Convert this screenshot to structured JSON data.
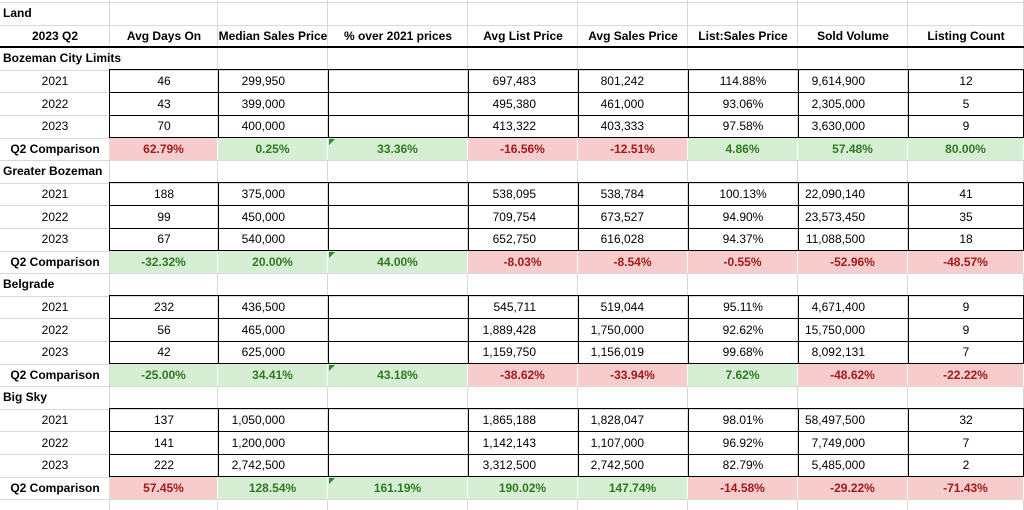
{
  "sheet": {
    "title": "Land",
    "period_label": "2023 Q2",
    "headers": [
      "Avg Days On",
      "Median Sales Price",
      "% over 2021 prices",
      "Avg List Price",
      "Avg Sales Price",
      "List:Sales Price",
      "Sold Volume",
      "Listing Count"
    ],
    "comparison_label": "Q2 Comparison",
    "colors": {
      "positive_bg": "#d6efd4",
      "positive_text": "#2e7a1f",
      "negative_bg": "#f6cccc",
      "negative_text": "#a21a1a"
    },
    "sections": [
      {
        "name": "Bozeman City Limits",
        "rows": [
          {
            "year": "2021",
            "v": [
              "46",
              "299,950",
              "",
              "697,483",
              "801,242",
              "114.88%",
              "9,614,900",
              "12"
            ]
          },
          {
            "year": "2022",
            "v": [
              "43",
              "399,000",
              "",
              "495,380",
              "461,000",
              "93.06%",
              "2,305,000",
              "5"
            ]
          },
          {
            "year": "2023",
            "v": [
              "70",
              "400,000",
              "",
              "413,322",
              "403,333",
              "97.58%",
              "3,630,000",
              "9"
            ]
          }
        ],
        "comparison": [
          "62.79%",
          "0.25%",
          "33.36%",
          "-16.56%",
          "-12.51%",
          "4.86%",
          "57.48%",
          "80.00%"
        ],
        "comparison_tone": [
          "red",
          "green",
          "green",
          "red",
          "red",
          "green",
          "green",
          "green"
        ]
      },
      {
        "name": "Greater Bozeman",
        "rows": [
          {
            "year": "2021",
            "v": [
              "188",
              "375,000",
              "",
              "538,095",
              "538,784",
              "100.13%",
              "22,090,140",
              "41"
            ]
          },
          {
            "year": "2022",
            "v": [
              "99",
              "450,000",
              "",
              "709,754",
              "673,527",
              "94.90%",
              "23,573,450",
              "35"
            ]
          },
          {
            "year": "2023",
            "v": [
              "67",
              "540,000",
              "",
              "652,750",
              "616,028",
              "94.37%",
              "11,088,500",
              "18"
            ]
          }
        ],
        "comparison": [
          "-32.32%",
          "20.00%",
          "44.00%",
          "-8.03%",
          "-8.54%",
          "-0.55%",
          "-52.96%",
          "-48.57%"
        ],
        "comparison_tone": [
          "green",
          "green",
          "green",
          "red",
          "red",
          "red",
          "red",
          "red"
        ]
      },
      {
        "name": "Belgrade",
        "rows": [
          {
            "year": "2021",
            "v": [
              "232",
              "436,500",
              "",
              "545,711",
              "519,044",
              "95.11%",
              "4,671,400",
              "9"
            ]
          },
          {
            "year": "2022",
            "v": [
              "56",
              "465,000",
              "",
              "1,889,428",
              "1,750,000",
              "92.62%",
              "15,750,000",
              "9"
            ]
          },
          {
            "year": "2023",
            "v": [
              "42",
              "625,000",
              "",
              "1,159,750",
              "1,156,019",
              "99.68%",
              "8,092,131",
              "7"
            ]
          }
        ],
        "comparison": [
          "-25.00%",
          "34.41%",
          "43.18%",
          "-38.62%",
          "-33.94%",
          "7.62%",
          "-48.62%",
          "-22.22%"
        ],
        "comparison_tone": [
          "green",
          "green",
          "green",
          "red",
          "red",
          "green",
          "red",
          "red"
        ]
      },
      {
        "name": "Big Sky",
        "rows": [
          {
            "year": "2021",
            "v": [
              "137",
              "1,050,000",
              "",
              "1,865,188",
              "1,828,047",
              "98.01%",
              "58,497,500",
              "32"
            ]
          },
          {
            "year": "2022",
            "v": [
              "141",
              "1,200,000",
              "",
              "1,142,143",
              "1,107,000",
              "96.92%",
              "7,749,000",
              "7"
            ]
          },
          {
            "year": "2023",
            "v": [
              "222",
              "2,742,500",
              "",
              "3,312,500",
              "2,742,500",
              "82.79%",
              "5,485,000",
              "2"
            ]
          }
        ],
        "comparison": [
          "57.45%",
          "128.54%",
          "161.19%",
          "190.02%",
          "147.74%",
          "-14.58%",
          "-29.22%",
          "-71.43%"
        ],
        "comparison_tone": [
          "red",
          "green",
          "green",
          "green",
          "green",
          "red",
          "red",
          "red"
        ]
      }
    ]
  }
}
